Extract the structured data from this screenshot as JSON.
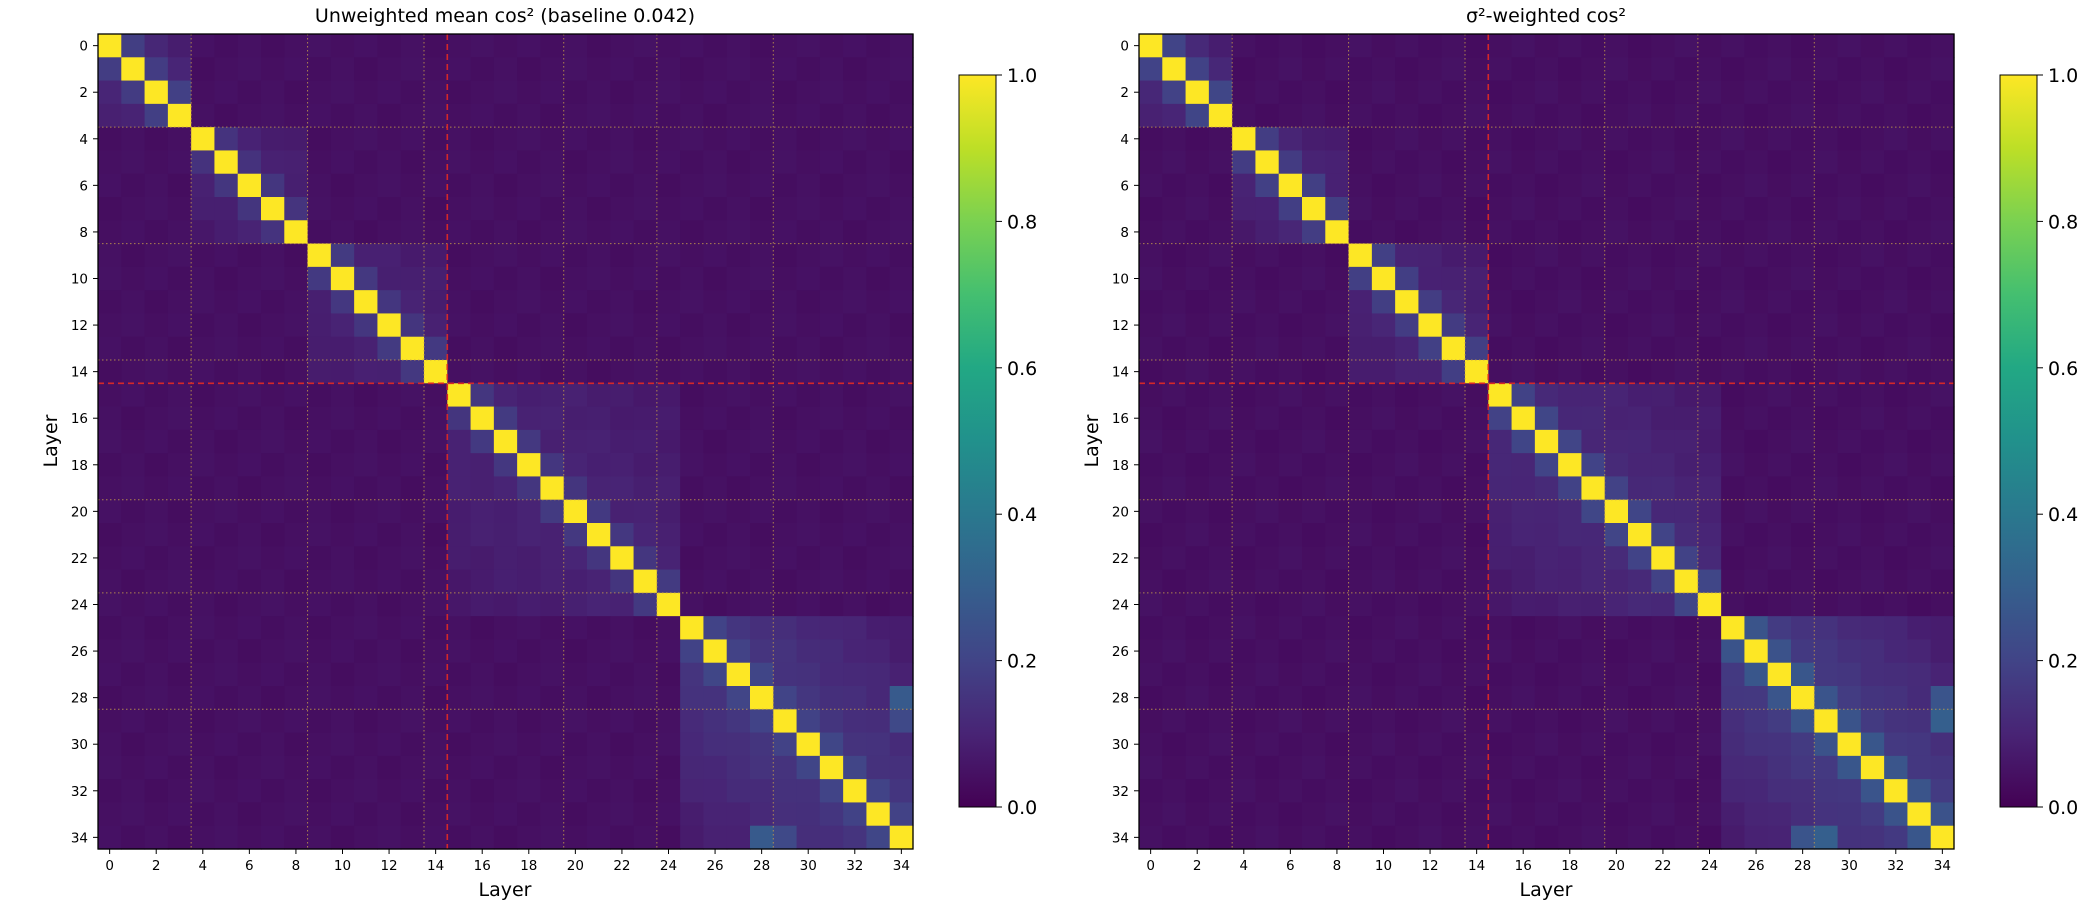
{
  "chart_data": [
    {
      "type": "heatmap",
      "title": "Unweighted mean cos²  (baseline 0.042)",
      "xlabel": "Layer",
      "ylabel": "Layer",
      "n_layers": 35,
      "x_ticks": [
        0,
        2,
        4,
        6,
        8,
        10,
        12,
        14,
        16,
        18,
        20,
        22,
        24,
        26,
        28,
        30,
        32,
        34
      ],
      "y_ticks": [
        0,
        2,
        4,
        6,
        8,
        10,
        12,
        14,
        16,
        18,
        20,
        22,
        24,
        26,
        28,
        30,
        32,
        34
      ],
      "baseline": 0.042,
      "diagonal": 1.0,
      "blocks": [
        {
          "range": [
            0,
            3
          ],
          "near": 0.18,
          "far": 0.12
        },
        {
          "range": [
            4,
            8
          ],
          "near": 0.15,
          "far": 0.1
        },
        {
          "range": [
            9,
            14
          ],
          "near": 0.16,
          "far": 0.1
        },
        {
          "range": [
            15,
            24
          ],
          "near": 0.16,
          "far": 0.1
        },
        {
          "range": [
            25,
            34
          ],
          "near": 0.2,
          "far": 0.16
        }
      ],
      "highlights": [
        {
          "cell": [
            28,
            34
          ],
          "value": 0.28
        },
        {
          "cell": [
            29,
            34
          ],
          "value": 0.22
        }
      ],
      "guides": {
        "major_boundary": 14.5,
        "minor_boundaries": [
          3.5,
          8.5,
          13.5,
          19.5,
          23.5,
          28.5
        ],
        "major_color": "#d62728",
        "minor_color": "#c8a04a"
      },
      "colorbar": {
        "colormap": "viridis",
        "vmin": 0.0,
        "vmax": 1.0,
        "ticks": [
          "0.0",
          "0.2",
          "0.4",
          "0.6",
          "0.8",
          "1.0"
        ]
      }
    },
    {
      "type": "heatmap",
      "title": "σ²-weighted cos²",
      "xlabel": "Layer",
      "ylabel": "Layer",
      "n_layers": 35,
      "x_ticks": [
        0,
        2,
        4,
        6,
        8,
        10,
        12,
        14,
        16,
        18,
        20,
        22,
        24,
        26,
        28,
        30,
        32,
        34
      ],
      "y_ticks": [
        0,
        2,
        4,
        6,
        8,
        10,
        12,
        14,
        16,
        18,
        20,
        22,
        24,
        26,
        28,
        30,
        32,
        34
      ],
      "baseline": 0.04,
      "diagonal": 1.0,
      "blocks": [
        {
          "range": [
            0,
            3
          ],
          "near": 0.2,
          "far": 0.13
        },
        {
          "range": [
            4,
            8
          ],
          "near": 0.18,
          "far": 0.11
        },
        {
          "range": [
            9,
            14
          ],
          "near": 0.18,
          "far": 0.11
        },
        {
          "range": [
            15,
            24
          ],
          "near": 0.2,
          "far": 0.12
        },
        {
          "range": [
            25,
            34
          ],
          "near": 0.26,
          "far": 0.18
        }
      ],
      "highlights": [
        {
          "cell": [
            29,
            34
          ],
          "value": 0.3
        },
        {
          "cell": [
            28,
            34
          ],
          "value": 0.26
        }
      ],
      "guides": {
        "major_boundary": 14.5,
        "minor_boundaries": [
          3.5,
          8.5,
          13.5,
          19.5,
          23.5,
          28.5
        ],
        "major_color": "#d62728",
        "minor_color": "#c8a04a"
      },
      "colorbar": {
        "colormap": "viridis",
        "vmin": 0.0,
        "vmax": 1.0,
        "ticks": [
          "0.0",
          "0.2",
          "0.4",
          "0.6",
          "0.8",
          "1.0"
        ]
      }
    }
  ]
}
